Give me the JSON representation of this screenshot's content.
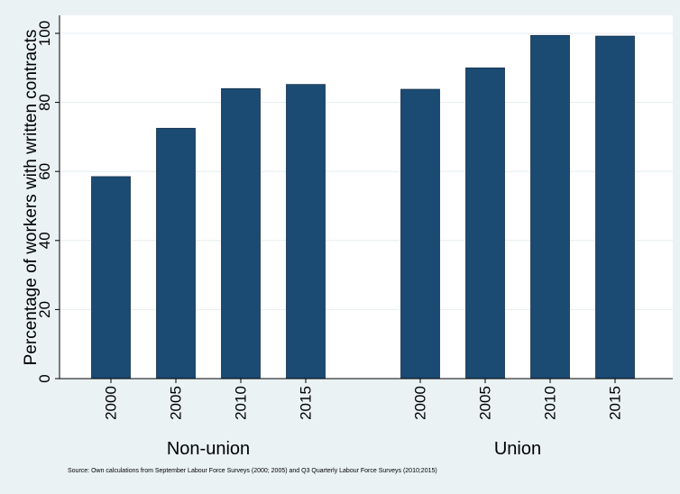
{
  "chart_data": {
    "type": "bar",
    "ylabel": "Percentage of workers with written contracts",
    "ylim": [
      0,
      105
    ],
    "yticks": [
      0,
      20,
      40,
      60,
      80,
      100
    ],
    "grid": true,
    "bar_color": "#1b4a72",
    "groups": [
      {
        "name": "Non-union",
        "categories": [
          "2000",
          "2005",
          "2010",
          "2015"
        ],
        "values": [
          58.5,
          72.5,
          84,
          85.2
        ]
      },
      {
        "name": "Union",
        "categories": [
          "2000",
          "2005",
          "2010",
          "2015"
        ],
        "values": [
          83.8,
          90,
          99.4,
          99.2
        ]
      }
    ],
    "note": "Source: Own calculations from September Labour Force Surveys (2000; 2005) and Q3 Quarterly Labour Force Surveys (2010;2015)"
  }
}
